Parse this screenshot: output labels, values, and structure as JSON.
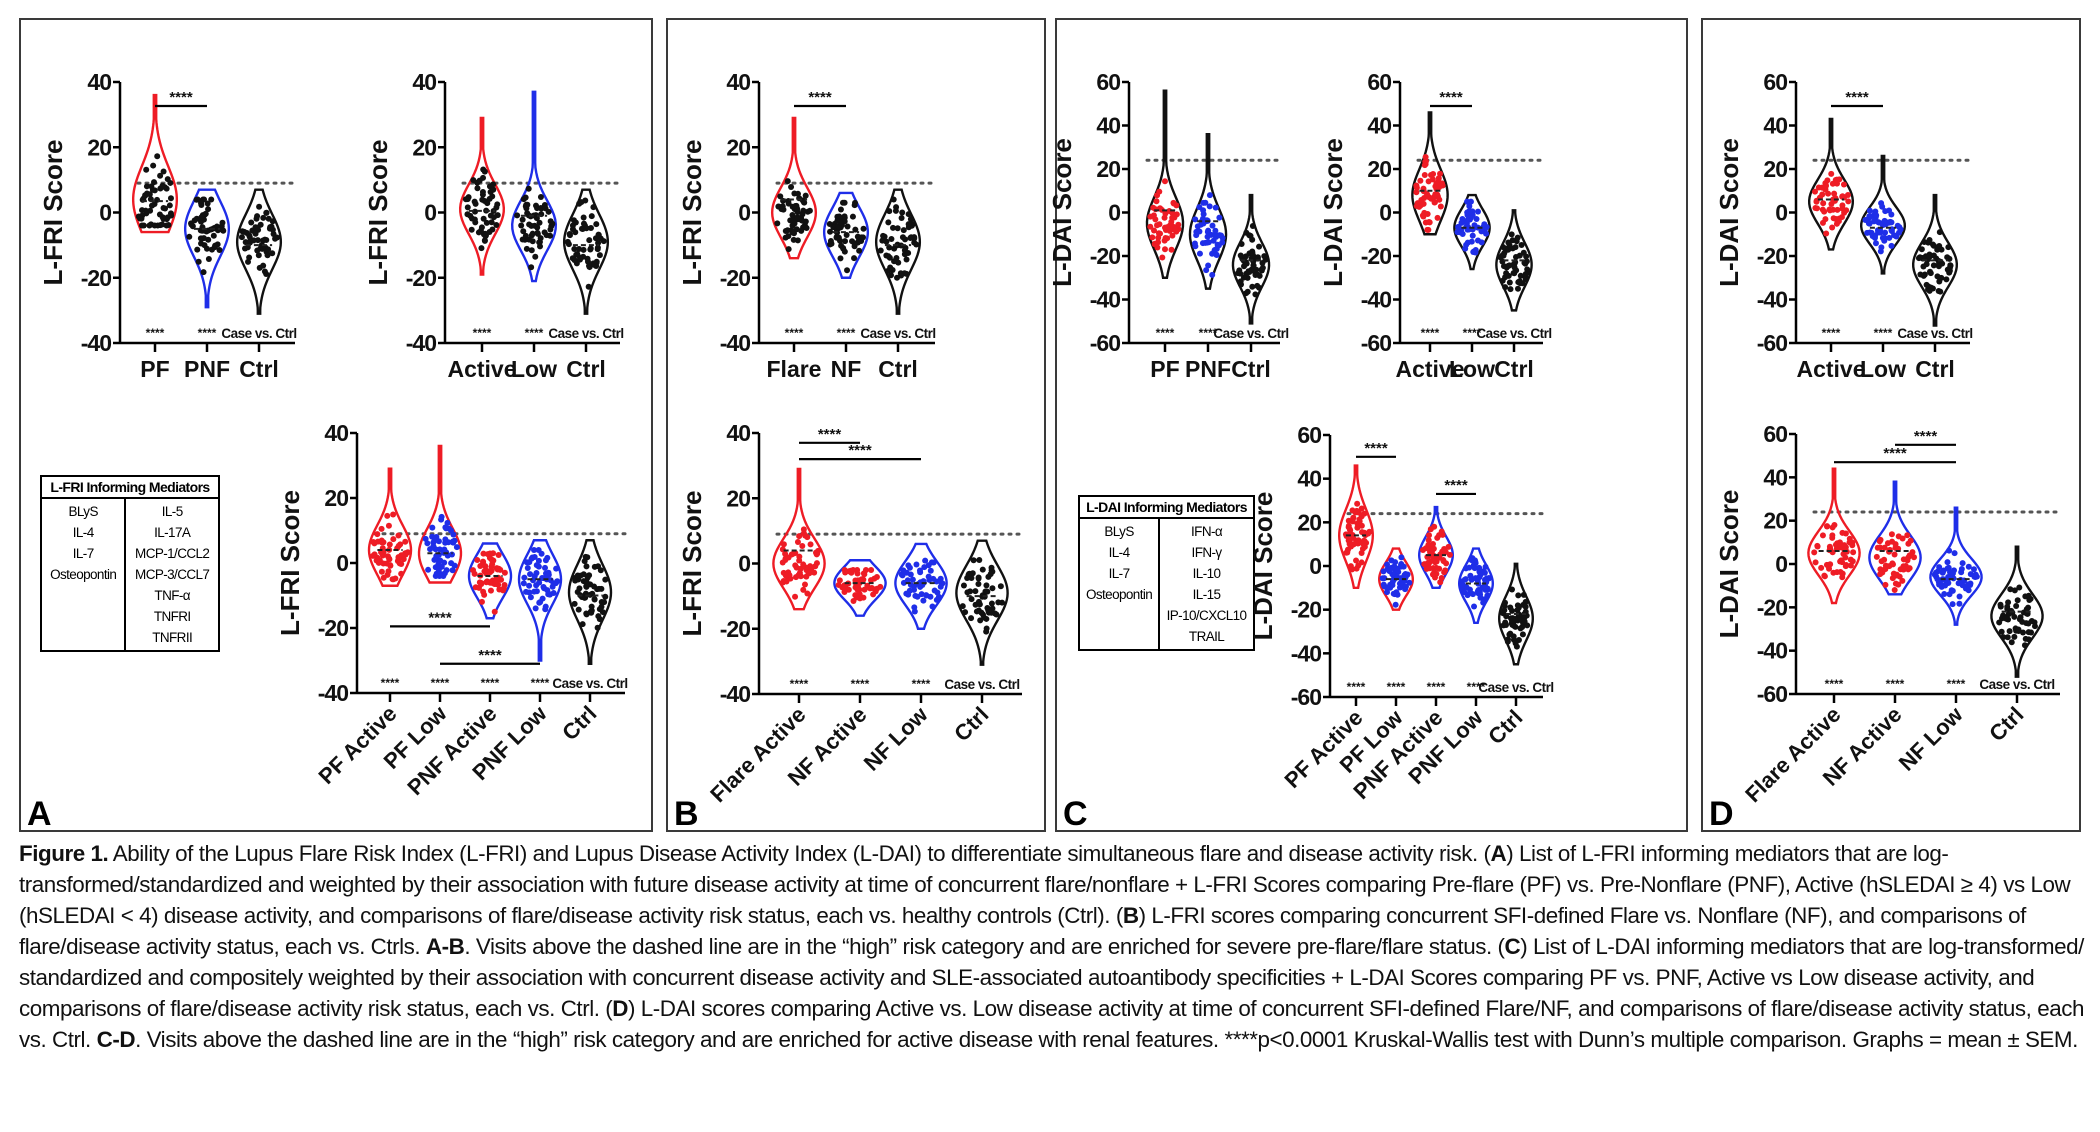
{
  "panels": [
    {
      "id": "A",
      "letter": "A"
    },
    {
      "id": "B",
      "letter": "B"
    },
    {
      "id": "C",
      "letter": "C"
    },
    {
      "id": "D",
      "letter": "D"
    }
  ],
  "tables": {
    "lfri": {
      "title": "L-FRI Informing Mediators",
      "left": [
        "BLyS",
        "IL-4",
        "IL-7",
        "Osteopontin"
      ],
      "right": [
        "IL-5",
        "IL-17A",
        "MCP-1/CCL2",
        "MCP-3/CCL7",
        "TNF-α",
        "TNFRI",
        "TNFRII"
      ]
    },
    "ldai": {
      "title": "L-DAI Informing Mediators",
      "left": [
        "BLyS",
        "IL-4",
        "IL-7",
        "Osteopontin"
      ],
      "right": [
        "IFN-α",
        "IFN-γ",
        "IL-10",
        "IL-15",
        "IP-10/CXCL10",
        "TRAIL"
      ]
    }
  },
  "colors": {
    "red": "#ee1c25",
    "blue": "#1f2ee8",
    "black": "#111111",
    "threshold": "#555555"
  },
  "chart_data": [
    {
      "id": "A1",
      "panel": "A",
      "type": "violin",
      "ylabel": "L-FRI  Score",
      "ylim": [
        -40,
        40
      ],
      "yticks": [
        -40,
        -20,
        0,
        20,
        40
      ],
      "threshold": 9,
      "rotated_labels": false,
      "categories": [
        "PF",
        "PNF",
        "Ctrl"
      ],
      "groups": [
        {
          "name": "PF",
          "color": "red",
          "point_color": "black",
          "min": -6,
          "max": 36,
          "mean": 3.5,
          "mode": 4,
          "spread": 12
        },
        {
          "name": "PNF",
          "color": "blue",
          "point_color": "black",
          "min": -29,
          "max": 7,
          "mean": -5,
          "mode": -5,
          "spread": 10
        },
        {
          "name": "Ctrl",
          "color": "black",
          "point_color": "black",
          "min": -31,
          "max": 7,
          "mean": -10,
          "mode": -9,
          "spread": 10
        }
      ],
      "bottom_stars": [
        "****",
        "****"
      ],
      "bottom_note": "Case vs. Ctrl",
      "brackets": [
        {
          "from": 0,
          "to": 1,
          "level": 0,
          "label": "****"
        }
      ]
    },
    {
      "id": "A2",
      "panel": "A",
      "type": "violin",
      "ylabel": "L-FRI Score",
      "ylim": [
        -40,
        40
      ],
      "yticks": [
        -40,
        -20,
        0,
        20,
        40
      ],
      "threshold": 9,
      "rotated_labels": false,
      "categories": [
        "Active",
        "Low",
        "Ctrl"
      ],
      "groups": [
        {
          "name": "Active",
          "color": "red",
          "point_color": "black",
          "min": -19,
          "max": 29,
          "mean": 0.5,
          "mode": 1,
          "spread": 9
        },
        {
          "name": "Low",
          "color": "blue",
          "point_color": "black",
          "min": -21,
          "max": 37,
          "mean": -1,
          "mode": -4,
          "spread": 9
        },
        {
          "name": "Ctrl",
          "color": "black",
          "point_color": "black",
          "min": -31,
          "max": 7,
          "mean": -10,
          "mode": -9,
          "spread": 10
        }
      ],
      "bottom_stars": [
        "****",
        "****"
      ],
      "bottom_note": "Case vs. Ctrl",
      "brackets": []
    },
    {
      "id": "A3",
      "panel": "A",
      "type": "violin",
      "ylabel": "L-FRI  Score",
      "ylim": [
        -40,
        40
      ],
      "yticks": [
        -40,
        -20,
        0,
        20,
        40
      ],
      "threshold": 9,
      "rotated_labels": true,
      "categories": [
        "PF Active",
        "PF Low",
        "PNF Active",
        "PNF Low",
        "Ctrl"
      ],
      "groups": [
        {
          "name": "PF Active",
          "color": "red",
          "point_color": "red",
          "min": -7,
          "max": 29,
          "mean": 4,
          "mode": 4,
          "spread": 9
        },
        {
          "name": "PF Low",
          "color": "red",
          "point_color": "blue",
          "min": -6,
          "max": 36,
          "mean": 3,
          "mode": 3,
          "spread": 9
        },
        {
          "name": "PNF Active",
          "color": "blue",
          "point_color": "red",
          "min": -17,
          "max": 6,
          "mean": -4,
          "mode": -4,
          "spread": 8
        },
        {
          "name": "PNF Low",
          "color": "blue",
          "point_color": "blue",
          "min": -30,
          "max": 7,
          "mean": -5,
          "mode": -5,
          "spread": 9
        },
        {
          "name": "Ctrl",
          "color": "black",
          "point_color": "black",
          "min": -31,
          "max": 7,
          "mean": -10,
          "mode": -9,
          "spread": 10
        }
      ],
      "bottom_stars": [
        "****",
        "****",
        "****",
        "****"
      ],
      "bottom_note": "Case vs. Ctrl",
      "brackets": [
        {
          "from": 0,
          "to": 2,
          "y": -19.5,
          "label": "****"
        },
        {
          "from": 1,
          "to": 3,
          "y": -31,
          "label": "****"
        }
      ]
    },
    {
      "id": "B1",
      "panel": "B",
      "type": "violin",
      "ylabel": "L-FRI  Score",
      "ylim": [
        -40,
        40
      ],
      "yticks": [
        -40,
        -20,
        0,
        20,
        40
      ],
      "threshold": 9,
      "rotated_labels": false,
      "categories": [
        "Flare",
        "NF",
        "Ctrl"
      ],
      "groups": [
        {
          "name": "Flare",
          "color": "red",
          "point_color": "black",
          "min": -14,
          "max": 29,
          "mean": 4,
          "mode": 0,
          "spread": 9
        },
        {
          "name": "NF",
          "color": "blue",
          "point_color": "black",
          "min": -20,
          "max": 6,
          "mean": -6,
          "mode": -6,
          "spread": 9
        },
        {
          "name": "Ctrl",
          "color": "black",
          "point_color": "black",
          "min": -31,
          "max": 7,
          "mean": -10,
          "mode": -9,
          "spread": 10
        }
      ],
      "bottom_stars": [
        "****",
        "****"
      ],
      "bottom_note": "Case vs. Ctrl",
      "brackets": [
        {
          "from": 0,
          "to": 1,
          "level": 0,
          "label": "****"
        }
      ]
    },
    {
      "id": "B2",
      "panel": "B",
      "type": "violin",
      "ylabel": "L-FRI  Score",
      "ylim": [
        -40,
        40
      ],
      "yticks": [
        -40,
        -20,
        0,
        20,
        40
      ],
      "threshold": 9,
      "rotated_labels": true,
      "categories": [
        "Flare Active",
        "NF Active",
        "NF Low",
        "Ctrl"
      ],
      "groups": [
        {
          "name": "Flare Active",
          "color": "red",
          "point_color": "red",
          "min": -14,
          "max": 29,
          "mean": 4,
          "mode": 0,
          "spread": 9
        },
        {
          "name": "NF Active",
          "color": "blue",
          "point_color": "red",
          "min": -16,
          "max": 1,
          "mean": -6,
          "mode": -6,
          "spread": 6
        },
        {
          "name": "NF Low",
          "color": "blue",
          "point_color": "blue",
          "min": -20,
          "max": 6,
          "mean": -6,
          "mode": -6,
          "spread": 8
        },
        {
          "name": "Ctrl",
          "color": "black",
          "point_color": "black",
          "min": -31,
          "max": 7,
          "mean": -10,
          "mode": -9,
          "spread": 10
        }
      ],
      "bottom_stars": [
        "****",
        "****",
        "****"
      ],
      "bottom_note": "Case vs. Ctrl",
      "brackets": [
        {
          "from": 0,
          "to": 1,
          "y": 37,
          "label": "****"
        },
        {
          "from": 0,
          "to": 2,
          "y": 32,
          "label": "****"
        }
      ]
    },
    {
      "id": "C1",
      "panel": "C",
      "type": "violin",
      "ylabel": "L-DAI  Score",
      "ylim": [
        -60,
        60
      ],
      "yticks": [
        -60,
        -40,
        -20,
        0,
        20,
        40,
        60
      ],
      "threshold": 24,
      "rotated_labels": false,
      "categories": [
        "PF",
        "PNF",
        "Ctrl"
      ],
      "groups": [
        {
          "name": "PF",
          "color": "black",
          "point_color": "red",
          "min": -30,
          "max": 56,
          "mean": 1,
          "mode": -5,
          "spread": 14
        },
        {
          "name": "PNF",
          "color": "black",
          "point_color": "blue",
          "min": -35,
          "max": 36,
          "mean": -4,
          "mode": -10,
          "spread": 14
        },
        {
          "name": "Ctrl",
          "color": "black",
          "point_color": "black",
          "min": -51,
          "max": 8,
          "mean": -22,
          "mode": -24,
          "spread": 12
        }
      ],
      "bottom_stars": [
        "****",
        "****"
      ],
      "bottom_note": "Case vs. Ctrl",
      "brackets": []
    },
    {
      "id": "C2",
      "panel": "C",
      "type": "violin",
      "ylabel": "L-DAI  Score",
      "ylim": [
        -60,
        60
      ],
      "yticks": [
        -60,
        -40,
        -20,
        0,
        20,
        40,
        60
      ],
      "threshold": 24,
      "rotated_labels": false,
      "categories": [
        "Active",
        "Low",
        "Ctrl"
      ],
      "groups": [
        {
          "name": "Active",
          "color": "black",
          "point_color": "red",
          "min": -10,
          "max": 46,
          "mean": 10,
          "mode": 8,
          "spread": 14
        },
        {
          "name": "Low",
          "color": "black",
          "point_color": "blue",
          "min": -26,
          "max": 8,
          "mean": -7,
          "mode": -7,
          "spread": 10
        },
        {
          "name": "Ctrl",
          "color": "black",
          "point_color": "black",
          "min": -45,
          "max": 1,
          "mean": -22,
          "mode": -24,
          "spread": 12
        }
      ],
      "bottom_stars": [
        "****",
        "****"
      ],
      "bottom_note": "Case vs. Ctrl",
      "brackets": [
        {
          "from": 0,
          "to": 1,
          "level": 0,
          "label": "****"
        }
      ]
    },
    {
      "id": "C3",
      "panel": "C",
      "type": "violin",
      "ylabel": "L-DAI  Score",
      "ylim": [
        -60,
        60
      ],
      "yticks": [
        -60,
        -40,
        -20,
        0,
        20,
        40,
        60
      ],
      "threshold": 24,
      "rotated_labels": true,
      "categories": [
        "PF Active",
        "PF Low",
        "PNF Active",
        "PNF Low",
        "Ctrl"
      ],
      "groups": [
        {
          "name": "PF Active",
          "color": "red",
          "point_color": "red",
          "min": -10,
          "max": 46,
          "mean": 14,
          "mode": 14,
          "spread": 14
        },
        {
          "name": "PF Low",
          "color": "red",
          "point_color": "blue",
          "min": -20,
          "max": 8,
          "mean": -6,
          "mode": -6,
          "spread": 9
        },
        {
          "name": "PNF Active",
          "color": "blue",
          "point_color": "red",
          "min": -10,
          "max": 27,
          "mean": 5,
          "mode": 5,
          "spread": 10
        },
        {
          "name": "PNF Low",
          "color": "blue",
          "point_color": "blue",
          "min": -26,
          "max": 8,
          "mean": -8,
          "mode": -8,
          "spread": 10
        },
        {
          "name": "Ctrl",
          "color": "black",
          "point_color": "black",
          "min": -45,
          "max": 1,
          "mean": -22,
          "mode": -24,
          "spread": 12
        }
      ],
      "bottom_stars": [
        "****",
        "****",
        "****",
        "****"
      ],
      "bottom_note": "Case vs. Ctrl",
      "brackets": [
        {
          "from": 0,
          "to": 1,
          "y": 50,
          "label": "****"
        },
        {
          "from": 2,
          "to": 3,
          "y": 33,
          "label": "****"
        }
      ]
    },
    {
      "id": "D1",
      "panel": "D",
      "type": "violin",
      "ylabel": "L-DAI Score",
      "ylim": [
        -60,
        60
      ],
      "yticks": [
        -60,
        -40,
        -20,
        0,
        20,
        40,
        60
      ],
      "threshold": 24,
      "rotated_labels": false,
      "categories": [
        "Active",
        "Low",
        "Ctrl"
      ],
      "groups": [
        {
          "name": "Active",
          "color": "black",
          "point_color": "red",
          "min": -17,
          "max": 43,
          "mean": 6,
          "mode": 5,
          "spread": 12
        },
        {
          "name": "Low",
          "color": "black",
          "point_color": "blue",
          "min": -28,
          "max": 26,
          "mean": -7,
          "mode": -6,
          "spread": 10
        },
        {
          "name": "Ctrl",
          "color": "black",
          "point_color": "black",
          "min": -52,
          "max": 8,
          "mean": -22,
          "mode": -24,
          "spread": 12
        }
      ],
      "bottom_stars": [
        "****",
        "****"
      ],
      "bottom_note": "Case vs. Ctrl",
      "brackets": [
        {
          "from": 0,
          "to": 1,
          "level": 0,
          "label": "****"
        }
      ]
    },
    {
      "id": "D2",
      "panel": "D",
      "type": "violin",
      "ylabel": "L-DAI  Score",
      "ylim": [
        -60,
        60
      ],
      "yticks": [
        -60,
        -40,
        -20,
        0,
        20,
        40,
        60
      ],
      "threshold": 24,
      "rotated_labels": true,
      "categories": [
        "Flare Active",
        "NF Active",
        "NF Low",
        "Ctrl"
      ],
      "groups": [
        {
          "name": "Flare Active",
          "color": "red",
          "point_color": "red",
          "min": -18,
          "max": 44,
          "mean": 6,
          "mode": 5,
          "spread": 12
        },
        {
          "name": "NF Active",
          "color": "blue",
          "point_color": "red",
          "min": -14,
          "max": 38,
          "mean": 6,
          "mode": 3,
          "spread": 12
        },
        {
          "name": "NF Low",
          "color": "blue",
          "point_color": "blue",
          "min": -28,
          "max": 26,
          "mean": -7,
          "mode": -6,
          "spread": 10
        },
        {
          "name": "Ctrl",
          "color": "black",
          "point_color": "black",
          "min": -52,
          "max": 8,
          "mean": -22,
          "mode": -24,
          "spread": 12
        }
      ],
      "bottom_stars": [
        "****",
        "****",
        "****"
      ],
      "bottom_note": "Case vs. Ctrl",
      "brackets": [
        {
          "from": 1,
          "to": 2,
          "y": 55,
          "label": "****"
        },
        {
          "from": 0,
          "to": 2,
          "y": 47,
          "label": "****"
        }
      ]
    }
  ],
  "caption": {
    "segments": [
      {
        "b": true,
        "t": "Figure 1."
      },
      {
        "t": " Ability of the Lupus Flare Risk Index (L-FRI) and Lupus Disease Activity Index (L-DAI) to differentiate  simultaneous flare and disease activity risk. ("
      },
      {
        "b": true,
        "t": "A"
      },
      {
        "t": ") List of L-FRI informing mediators that are log-transformed/standardized and weighted by their association with future disease activity at time of concurrent flare/nonflare + L-FRI Scores comparing Pre-flare (PF) vs. Pre-Nonflare (PNF), Active (hSLEDAI ≥ 4) vs Low (hSLEDAI < 4) disease activity, and comparisons of flare/disease activity risk status, each vs. healthy controls (Ctrl). ("
      },
      {
        "b": true,
        "t": "B"
      },
      {
        "t": ") L-FRI scores comparing concurrent SFI-defined  Flare vs. Nonflare (NF), and comparisons of flare/disease activity status, each vs. Ctrls. "
      },
      {
        "b": true,
        "t": "A-B"
      },
      {
        "t": ".  Visits above the dashed line are in the “high” risk category and are enriched for severe pre-flare/flare status. ("
      },
      {
        "b": true,
        "t": "C"
      },
      {
        "t": ") List of L-DAI informing mediators that are log-transformed/ standardized and compositely weighted by their association with concurrent disease activity and SLE-associated autoantibody specificities + L-DAI  Scores comparing PF vs. PNF, Active vs Low disease activity, and comparisons of flare/disease activity risk status, each vs. Ctrl. ("
      },
      {
        "b": true,
        "t": "D"
      },
      {
        "t": ") L-DAI scores comparing Active vs. Low disease activity at time of concurrent SFI-defined  Flare/NF, and comparisons of flare/disease activity status, each vs. Ctrl. "
      },
      {
        "b": true,
        "t": "C-D"
      },
      {
        "t": ". Visits above the dashed line are in the “high” risk category and are enriched for active disease with renal features. ****p<0.0001 Kruskal-Wallis test with Dunn’s multiple comparison. Graphs = mean ± SEM."
      }
    ]
  }
}
